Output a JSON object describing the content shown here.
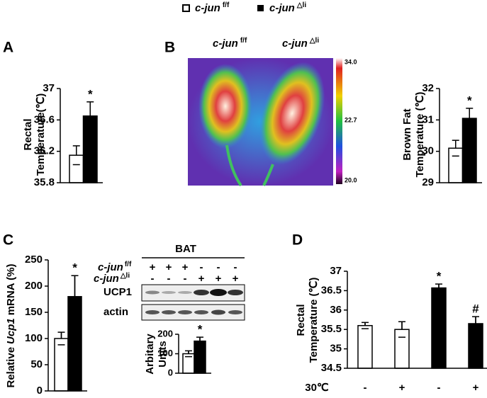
{
  "legend": [
    {
      "gene": "c-jun",
      "genotype": "f/f"
    },
    {
      "gene": "c-jun",
      "genotype": "△li"
    }
  ],
  "panel_labels": [
    "A",
    "B",
    "C",
    "D"
  ],
  "thermal": {
    "labels": [
      {
        "gene": "c-jun",
        "genotype": "f/f"
      },
      {
        "gene": "c-jun",
        "genotype": "△li"
      }
    ],
    "scale": [
      "34.0",
      "22.7",
      "20.0"
    ]
  },
  "blot": {
    "title": "BAT",
    "rows": [
      {
        "gene": "c-jun",
        "genotype": "f/f",
        "signs": [
          "+",
          "+",
          "+",
          "-",
          "-",
          "-"
        ]
      },
      {
        "gene": "c-jun",
        "genotype": "△li",
        "signs": [
          "-",
          "-",
          "-",
          "+",
          "+",
          "+"
        ]
      }
    ],
    "bands": [
      "UCP1",
      "actin"
    ]
  },
  "chart_data": [
    {
      "type": "bar",
      "ylabel": [
        "Rectal",
        "Temperature(℃)"
      ],
      "categories": [
        null
      ],
      "ylim": [
        35.8,
        37
      ],
      "yticks": [
        35.8,
        36.2,
        36.6,
        37
      ],
      "series": [
        {
          "color": "#ffffff",
          "values": [
            36.15
          ],
          "errors": [
            0.12
          ]
        },
        {
          "color": "#000000",
          "values": [
            36.65
          ],
          "errors": [
            0.18
          ]
        }
      ],
      "annotations": [
        {
          "text": "*",
          "series": 1,
          "index": 0
        }
      ]
    },
    {
      "type": "bar",
      "ylabel": [
        "Brown Fat",
        "Temperature (℃)"
      ],
      "categories": [
        null
      ],
      "ylim": [
        29,
        32
      ],
      "yticks": [
        29,
        30,
        31,
        32
      ],
      "series": [
        {
          "color": "#ffffff",
          "values": [
            30.1
          ],
          "errors": [
            0.25
          ]
        },
        {
          "color": "#000000",
          "values": [
            31.05
          ],
          "errors": [
            0.32
          ]
        }
      ],
      "annotations": [
        {
          "text": "*",
          "series": 1,
          "index": 0
        }
      ]
    },
    {
      "type": "bar",
      "ylabel": [
        "Relative",
        "Ucp1",
        "mRNA (%)"
      ],
      "categories": [
        null
      ],
      "ylim": [
        0,
        250
      ],
      "yticks": [
        0,
        50,
        100,
        150,
        200,
        250
      ],
      "series": [
        {
          "color": "#ffffff",
          "values": [
            100
          ],
          "errors": [
            12
          ]
        },
        {
          "color": "#000000",
          "values": [
            180
          ],
          "errors": [
            40
          ]
        }
      ],
      "annotations": [
        {
          "text": "*",
          "series": 1,
          "index": 0
        }
      ]
    },
    {
      "type": "bar",
      "ylabel": [
        "Arbitary",
        "Units"
      ],
      "categories": [
        null
      ],
      "ylim": [
        0,
        200
      ],
      "yticks": [
        0,
        100,
        200
      ],
      "series": [
        {
          "color": "#ffffff",
          "values": [
            100
          ],
          "errors": [
            15
          ]
        },
        {
          "color": "#000000",
          "values": [
            165
          ],
          "errors": [
            20
          ]
        }
      ],
      "annotations": [
        {
          "text": "*",
          "series": 1,
          "index": 0
        }
      ]
    },
    {
      "type": "bar",
      "ylabel": [
        "Rectal",
        "Temperature (℃)"
      ],
      "xlabel": "30℃",
      "categories": [
        "-",
        "+",
        "-",
        "+"
      ],
      "ylim": [
        34.5,
        37
      ],
      "yticks": [
        34.5,
        35,
        35.5,
        36,
        36.5,
        37
      ],
      "series": [
        {
          "color": "#ffffff",
          "values": [
            35.6,
            35.5,
            null,
            null
          ],
          "errors": [
            0.08,
            0.2,
            null,
            null
          ]
        },
        {
          "color": "#000000",
          "values": [
            null,
            null,
            36.57,
            35.65
          ],
          "errors": [
            null,
            null,
            0.1,
            0.18
          ]
        }
      ],
      "annotations": [
        {
          "text": "*",
          "series": 1,
          "index": 2
        },
        {
          "text": "#",
          "series": 1,
          "index": 3
        }
      ]
    }
  ]
}
